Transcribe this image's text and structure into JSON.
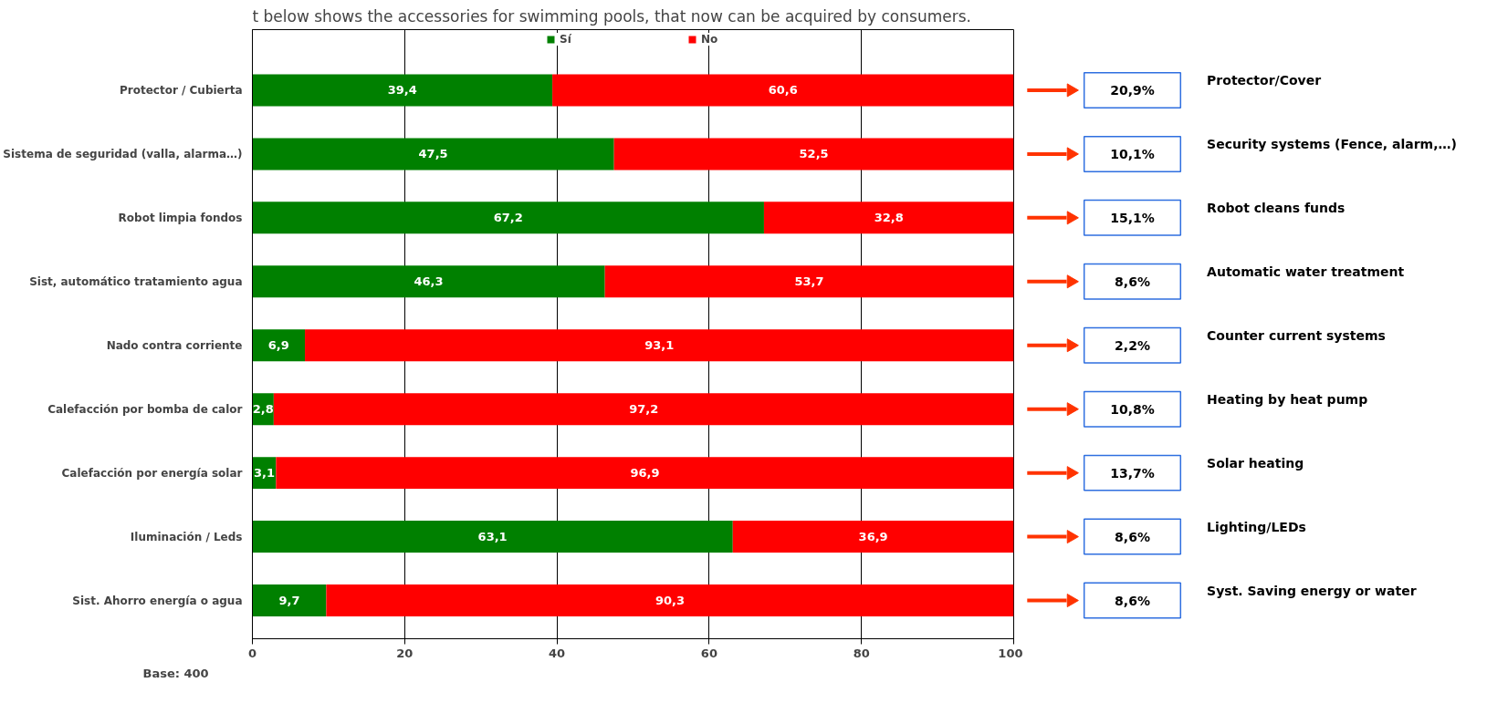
{
  "chart_data": {
    "type": "bar",
    "orientation": "horizontal",
    "stacked": true,
    "title": "t below shows the accessories for swimming pools, that now can be acquired by consumers.",
    "categories": [
      "Protector / Cubierta",
      "Sistema de seguridad (valla, alarma…)",
      "Robot limpia fondos",
      "Sist, automático tratamiento agua",
      "Nado contra corriente",
      "Calefacción por bomba de calor",
      "Calefacción por energía solar",
      "Iluminación / Leds",
      "Sist. Ahorro energía o agua"
    ],
    "series": [
      {
        "name": "Sí",
        "color": "#008000",
        "values": [
          39.4,
          47.5,
          67.2,
          46.3,
          6.9,
          2.8,
          3.1,
          63.1,
          9.7
        ],
        "value_labels": [
          "39,4",
          "47,5",
          "67,2",
          "46,3",
          "6,9",
          "2,8",
          "3,1",
          "63,1",
          "9,7"
        ]
      },
      {
        "name": "No",
        "color": "#ff0000",
        "values": [
          60.6,
          52.5,
          32.8,
          53.7,
          93.1,
          97.2,
          96.9,
          36.9,
          90.3
        ],
        "value_labels": [
          "60,6",
          "52,5",
          "32,8",
          "53,7",
          "93,1",
          "97,2",
          "96,9",
          "36,9",
          "90,3"
        ]
      }
    ],
    "xlim": [
      0,
      100
    ],
    "xticks": [
      0,
      20,
      40,
      60,
      80,
      100
    ],
    "grid": "x",
    "legend": "top",
    "annotations": [
      "Base: 400",
      "20,9%",
      "10,1%",
      "15,1%",
      "8,6%",
      "2,2%",
      "10,8%",
      "13,7%",
      "8,6%",
      "8,6%",
      "Protector/Cover",
      "Security systems (Fence, alarm,…)",
      "Robot cleans funds",
      "Automatic water treatment",
      "Counter current systems",
      "Heating by heat pump",
      "Solar heating",
      "Lighting/LEDs",
      "Syst. Saving energy or water"
    ]
  }
}
